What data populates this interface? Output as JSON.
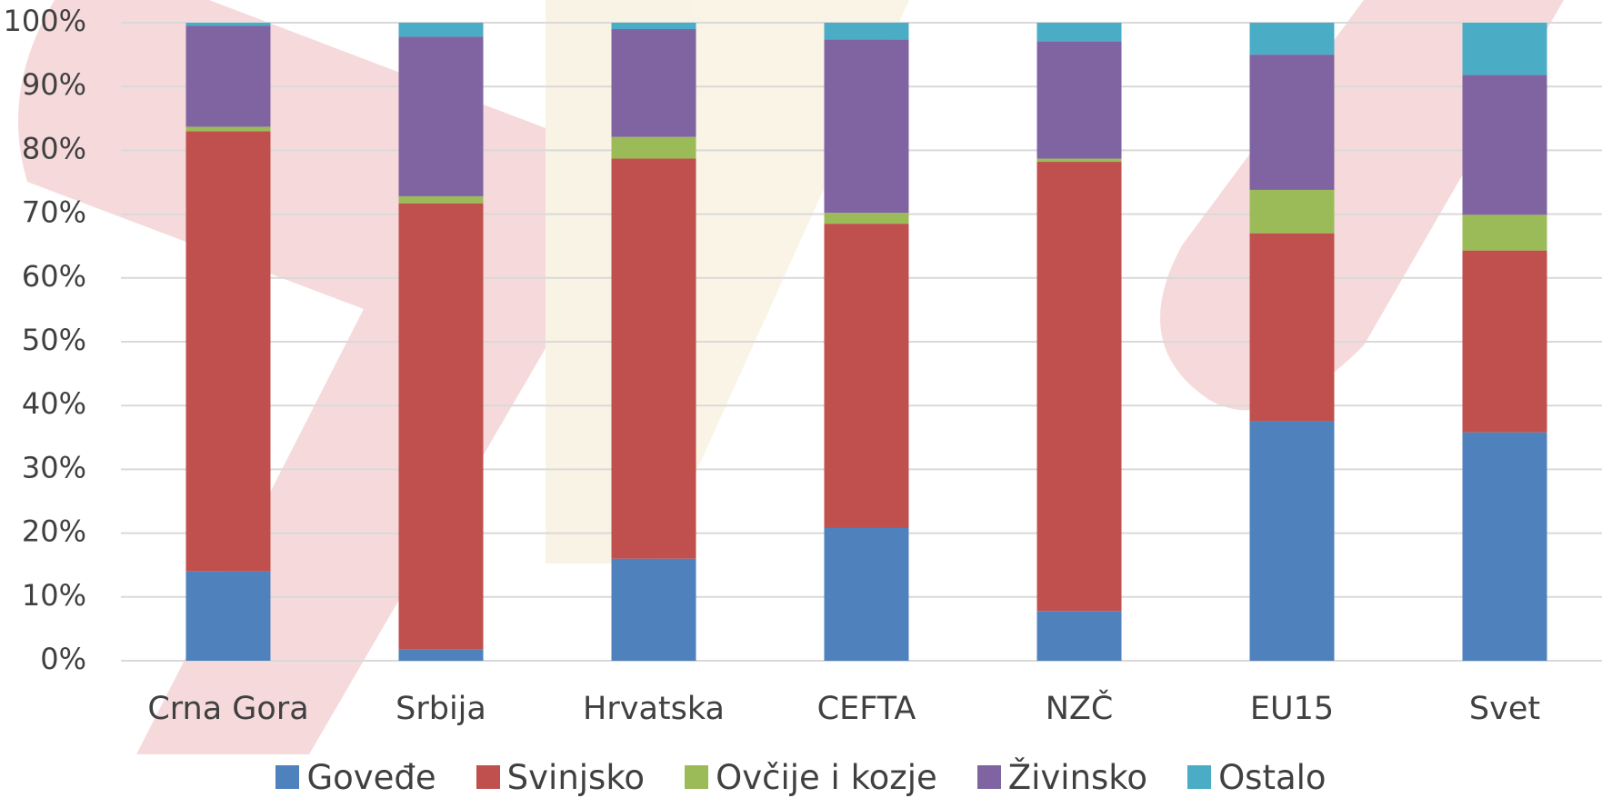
{
  "chart_data": {
    "type": "stacked_bar",
    "categories": [
      "Crna Gora",
      "Srbija",
      "Hrvatska",
      "CEFTA",
      "NZČ",
      "EU15",
      "Svet"
    ],
    "series": [
      {
        "name": "Goveđe",
        "color": "#4f81bd",
        "values": [
          14,
          1.8,
          16,
          20.8,
          7.8,
          37.6,
          35.8
        ]
      },
      {
        "name": "Svinjsko",
        "color": "#c0504d",
        "values": [
          69,
          69.9,
          62.7,
          47.7,
          70.4,
          29.4,
          28.5
        ]
      },
      {
        "name": "Ovčije i kozje",
        "color": "#9bbb59",
        "values": [
          0.7,
          1.1,
          3.4,
          1.7,
          0.5,
          6.8,
          5.6
        ]
      },
      {
        "name": "Živinsko",
        "color": "#8064a2",
        "values": [
          15.8,
          25,
          16.9,
          27.2,
          18.4,
          21.2,
          21.9
        ]
      },
      {
        "name": "Ostalo",
        "color": "#4bacc6",
        "values": [
          0.5,
          2.2,
          1,
          2.6,
          2.9,
          5,
          8.2
        ]
      }
    ],
    "ylim": [
      0,
      100
    ],
    "yticks": [
      {
        "value": 0,
        "label": "0%"
      },
      {
        "value": 10,
        "label": "10%"
      },
      {
        "value": 20,
        "label": "20%"
      },
      {
        "value": 30,
        "label": "30%"
      },
      {
        "value": 40,
        "label": "40%"
      },
      {
        "value": 50,
        "label": "50%"
      },
      {
        "value": 60,
        "label": "60%"
      },
      {
        "value": 70,
        "label": "70%"
      },
      {
        "value": 80,
        "label": "80%"
      },
      {
        "value": 90,
        "label": "90%"
      },
      {
        "value": 100,
        "label": "100%"
      }
    ],
    "grid": true
  }
}
